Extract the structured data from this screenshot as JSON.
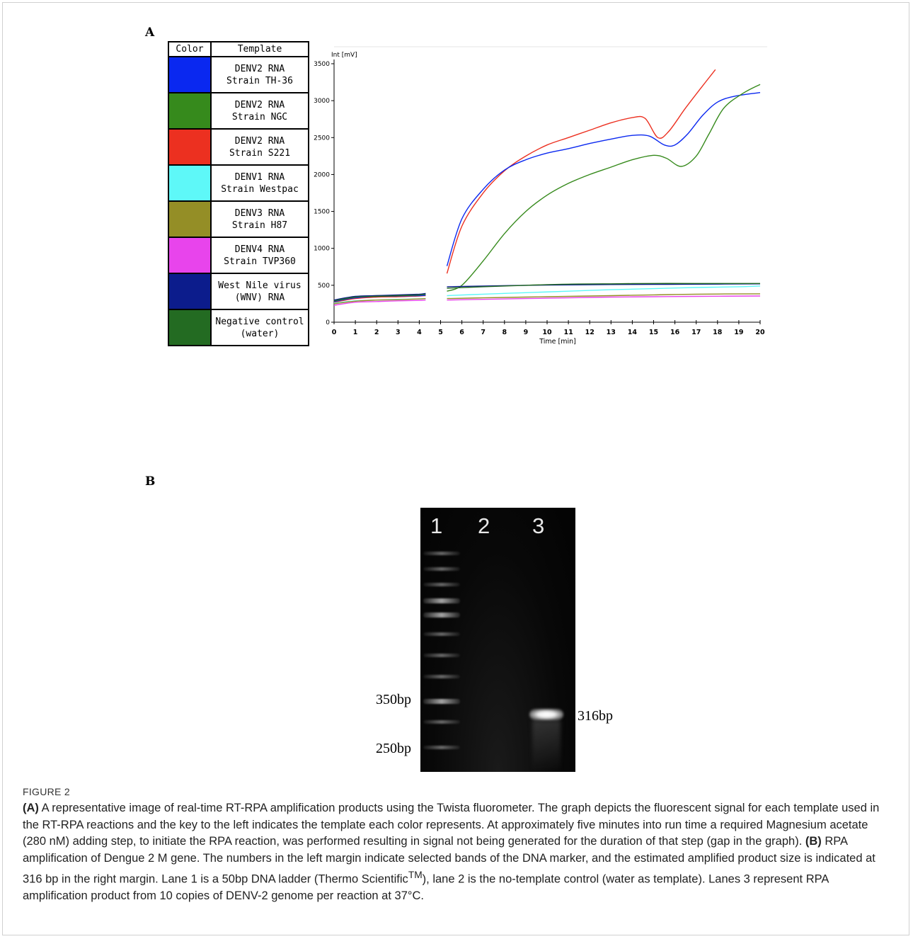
{
  "panel_a": {
    "label": "A",
    "legend": {
      "color_header": "Color",
      "template_header": "Template",
      "rows": [
        {
          "color": "#0a28f0",
          "template": "DENV2 RNA\nStrain TH-36"
        },
        {
          "color": "#368a1c",
          "template": "DENV2 RNA\nStrain NGC"
        },
        {
          "color": "#ec3020",
          "template": "DENV2 RNA\nStrain S221"
        },
        {
          "color": "#5ef8f8",
          "template": "DENV1 RNA\nStrain Westpac"
        },
        {
          "color": "#948e26",
          "template": "DENV3 RNA\nStrain H87"
        },
        {
          "color": "#e844ec",
          "template": "DENV4 RNA\nStrain TVP360"
        },
        {
          "color": "#0c1c8c",
          "template": "West Nile virus\n(WNV) RNA"
        },
        {
          "color": "#236b22",
          "template": "Negative control\n(water)"
        }
      ]
    }
  },
  "chart_data": {
    "type": "line",
    "ylabel": "Int [mV]",
    "xlabel": "Time [min]",
    "xlim": [
      0,
      20
    ],
    "ylim": [
      0,
      3500
    ],
    "x_ticks": [
      "0",
      "1",
      "2",
      "3",
      "4",
      "5",
      "6",
      "7",
      "8",
      "9",
      "10",
      "11",
      "12",
      "13",
      "14",
      "15",
      "16",
      "17",
      "18",
      "19",
      "20"
    ],
    "y_ticks": [
      "0",
      "500",
      "1000",
      "1500",
      "2000",
      "2500",
      "3000",
      "3500"
    ],
    "gap_minutes": [
      4.3,
      5.3
    ],
    "series": [
      {
        "color": "#ec3020",
        "pre": [
          [
            0,
            270
          ],
          [
            1,
            320
          ],
          [
            2,
            340
          ],
          [
            3,
            345
          ],
          [
            4,
            355
          ],
          [
            4.3,
            360
          ]
        ],
        "post": [
          [
            5.3,
            660
          ],
          [
            6,
            1300
          ],
          [
            7,
            1750
          ],
          [
            8,
            2050
          ],
          [
            9,
            2250
          ],
          [
            10,
            2400
          ],
          [
            11,
            2500
          ],
          [
            12,
            2600
          ],
          [
            13,
            2700
          ],
          [
            14,
            2770
          ],
          [
            14.6,
            2760
          ],
          [
            15.2,
            2500
          ],
          [
            15.7,
            2580
          ],
          [
            16.5,
            2900
          ],
          [
            17.3,
            3200
          ],
          [
            17.9,
            3420
          ]
        ]
      },
      {
        "color": "#0a28f0",
        "pre": [
          [
            0,
            280
          ],
          [
            1,
            330
          ],
          [
            2,
            350
          ],
          [
            3,
            355
          ],
          [
            4,
            360
          ],
          [
            4.3,
            365
          ]
        ],
        "post": [
          [
            5.3,
            760
          ],
          [
            6,
            1400
          ],
          [
            7,
            1800
          ],
          [
            8,
            2060
          ],
          [
            9,
            2200
          ],
          [
            10,
            2290
          ],
          [
            11,
            2350
          ],
          [
            12,
            2420
          ],
          [
            13,
            2480
          ],
          [
            14,
            2530
          ],
          [
            14.8,
            2520
          ],
          [
            15.5,
            2400
          ],
          [
            16,
            2400
          ],
          [
            16.6,
            2550
          ],
          [
            17.3,
            2800
          ],
          [
            18,
            2980
          ],
          [
            18.8,
            3060
          ],
          [
            20,
            3110
          ]
        ]
      },
      {
        "color": "#368a1c",
        "pre": [
          [
            0,
            290
          ],
          [
            1,
            340
          ],
          [
            2,
            360
          ],
          [
            3,
            360
          ],
          [
            4,
            370
          ],
          [
            4.3,
            380
          ]
        ],
        "post": [
          [
            5.3,
            420
          ],
          [
            6,
            500
          ],
          [
            7,
            830
          ],
          [
            8,
            1200
          ],
          [
            9,
            1500
          ],
          [
            10,
            1720
          ],
          [
            11,
            1880
          ],
          [
            12,
            2000
          ],
          [
            13,
            2100
          ],
          [
            14,
            2200
          ],
          [
            15,
            2260
          ],
          [
            15.6,
            2220
          ],
          [
            16.3,
            2110
          ],
          [
            17,
            2250
          ],
          [
            17.6,
            2550
          ],
          [
            18.3,
            2900
          ],
          [
            19.2,
            3100
          ],
          [
            20,
            3220
          ]
        ]
      },
      {
        "color": "#0c1c8c",
        "pre": [
          [
            0,
            300
          ],
          [
            1,
            350
          ],
          [
            2,
            360
          ],
          [
            3,
            370
          ],
          [
            4,
            380
          ],
          [
            4.3,
            390
          ]
        ],
        "post": [
          [
            5.3,
            480
          ],
          [
            7,
            490
          ],
          [
            9,
            500
          ],
          [
            11,
            505
          ],
          [
            13,
            510
          ],
          [
            15,
            512
          ],
          [
            17,
            515
          ],
          [
            20,
            520
          ]
        ]
      },
      {
        "color": "#236b22",
        "pre": [
          [
            0,
            290
          ],
          [
            1,
            340
          ],
          [
            2,
            350
          ],
          [
            3,
            360
          ],
          [
            4,
            370
          ],
          [
            4.3,
            380
          ]
        ],
        "post": [
          [
            5.3,
            460
          ],
          [
            7,
            480
          ],
          [
            9,
            500
          ],
          [
            11,
            515
          ],
          [
            13,
            520
          ],
          [
            15,
            525
          ],
          [
            17,
            525
          ],
          [
            20,
            525
          ]
        ]
      },
      {
        "color": "#5ef8f8",
        "pre": [
          [
            0,
            260
          ],
          [
            1,
            290
          ],
          [
            2,
            300
          ],
          [
            3,
            310
          ],
          [
            4,
            315
          ],
          [
            4.3,
            320
          ]
        ],
        "post": [
          [
            5.3,
            360
          ],
          [
            7,
            380
          ],
          [
            9,
            400
          ],
          [
            11,
            420
          ],
          [
            13,
            440
          ],
          [
            15,
            455
          ],
          [
            17,
            470
          ],
          [
            19,
            480
          ],
          [
            20,
            490
          ]
        ]
      },
      {
        "color": "#948e26",
        "pre": [
          [
            0,
            250
          ],
          [
            1,
            285
          ],
          [
            2,
            300
          ],
          [
            3,
            305
          ],
          [
            4,
            315
          ],
          [
            4.3,
            320
          ]
        ],
        "post": [
          [
            5.3,
            320
          ],
          [
            7,
            330
          ],
          [
            9,
            340
          ],
          [
            11,
            350
          ],
          [
            13,
            360
          ],
          [
            15,
            370
          ],
          [
            17,
            380
          ],
          [
            20,
            385
          ]
        ]
      },
      {
        "color": "#e844ec",
        "pre": [
          [
            0,
            230
          ],
          [
            1,
            270
          ],
          [
            2,
            280
          ],
          [
            3,
            290
          ],
          [
            4,
            295
          ],
          [
            4.3,
            300
          ]
        ],
        "post": [
          [
            5.3,
            300
          ],
          [
            7,
            310
          ],
          [
            9,
            320
          ],
          [
            11,
            330
          ],
          [
            13,
            340
          ],
          [
            15,
            345
          ],
          [
            17,
            350
          ],
          [
            20,
            355
          ]
        ]
      }
    ]
  },
  "panel_b": {
    "label": "B",
    "lanes": [
      "1",
      "2",
      "3"
    ],
    "marker_350": "350bp",
    "marker_250": "250bp",
    "product_label": "316bp"
  },
  "caption": {
    "figure_label": "FIGURE 2",
    "a_tag": "(A)",
    "a_text": " A representative image of real-time RT-RPA amplification products using the Twista fluorometer. The graph depicts the fluorescent signal for each template used in the RT-RPA reactions and the key to the left indicates the template each color represents. At approximately five minutes into run time a required Magnesium acetate (280 nM) adding step, to initiate the RPA reaction, was performed resulting in signal not being generated for the duration of that step (gap in the graph). ",
    "b_tag": "(B)",
    "b_text_1": " RPA amplification of Dengue 2 M gene. The numbers in the left margin indicate selected bands of the DNA marker, and the estimated amplified product size is indicated at 316 bp in the right margin. Lane 1 is a 50bp DNA ladder (Thermo Scientific",
    "tm": "TM",
    "b_text_2": "), lane 2 is the no-template control (water as template). Lanes 3 represent RPA amplification product from 10 copies of DENV-2 genome per reaction at 37°C."
  }
}
